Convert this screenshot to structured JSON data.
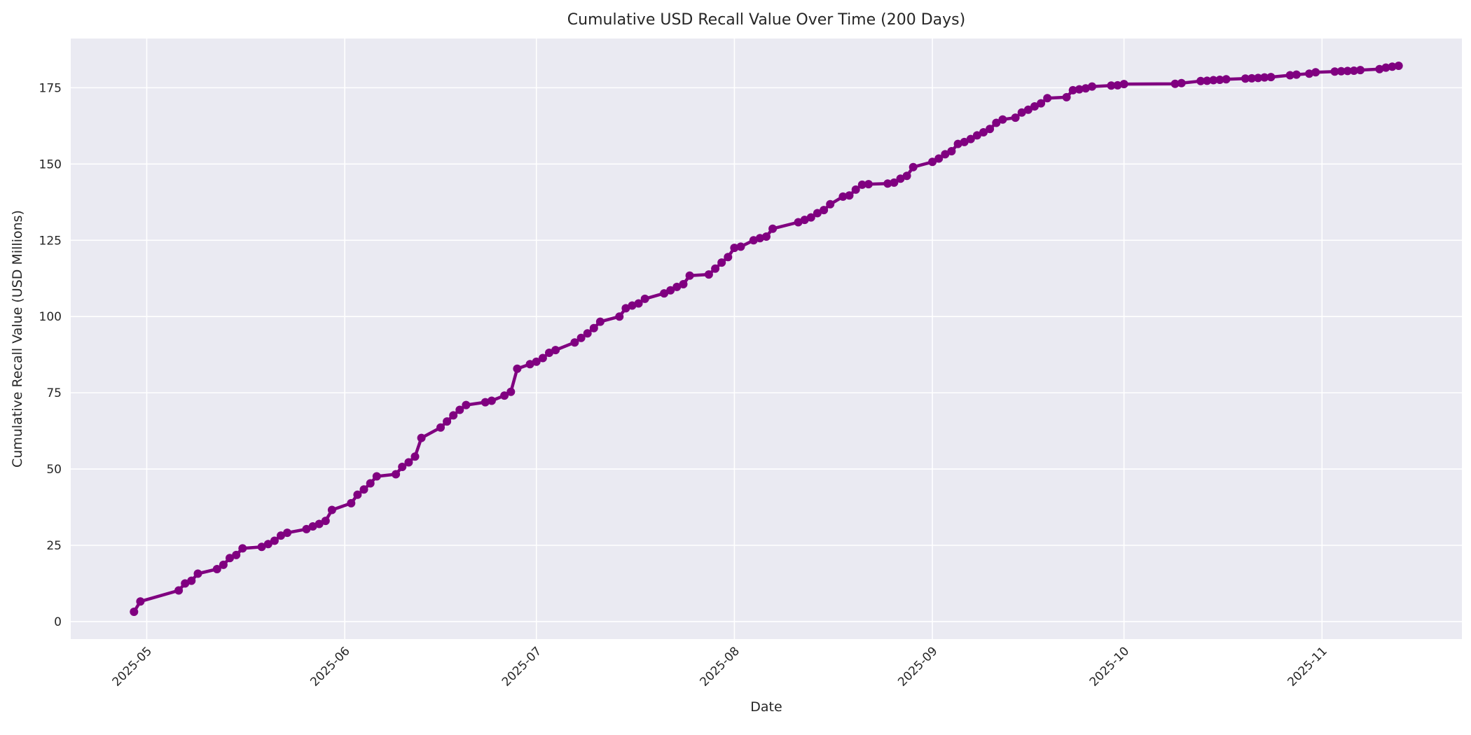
{
  "chart_data": {
    "type": "line",
    "title": "Cumulative USD Recall Value Over Time (200 Days)",
    "xlabel": "Date",
    "ylabel": "Cumulative Recall Value (USD Millions)",
    "legend": false,
    "grid": true,
    "background": "#eaeaf2",
    "grid_color": "#ffffff",
    "text_color": "#262626",
    "line_color": "#800080",
    "marker": "circle",
    "ylim": [
      -5.8,
      191.2
    ],
    "y_ticks": [
      0,
      25,
      50,
      75,
      100,
      125,
      150,
      175
    ],
    "x_ticks": [
      "2025-05",
      "2025-06",
      "2025-07",
      "2025-08",
      "2025-09",
      "2025-10",
      "2025-11"
    ],
    "dates": [
      "2025-04-29",
      "2025-04-30",
      "2025-05-06",
      "2025-05-07",
      "2025-05-08",
      "2025-05-09",
      "2025-05-12",
      "2025-05-13",
      "2025-05-14",
      "2025-05-15",
      "2025-05-16",
      "2025-05-19",
      "2025-05-20",
      "2025-05-21",
      "2025-05-22",
      "2025-05-23",
      "2025-05-26",
      "2025-05-27",
      "2025-05-28",
      "2025-05-29",
      "2025-05-30",
      "2025-06-02",
      "2025-06-03",
      "2025-06-04",
      "2025-06-05",
      "2025-06-06",
      "2025-06-09",
      "2025-06-10",
      "2025-06-11",
      "2025-06-12",
      "2025-06-13",
      "2025-06-16",
      "2025-06-17",
      "2025-06-18",
      "2025-06-19",
      "2025-06-20",
      "2025-06-23",
      "2025-06-24",
      "2025-06-26",
      "2025-06-27",
      "2025-06-28",
      "2025-06-30",
      "2025-07-01",
      "2025-07-02",
      "2025-07-03",
      "2025-07-04",
      "2025-07-07",
      "2025-07-08",
      "2025-07-09",
      "2025-07-10",
      "2025-07-11",
      "2025-07-14",
      "2025-07-15",
      "2025-07-16",
      "2025-07-17",
      "2025-07-18",
      "2025-07-21",
      "2025-07-22",
      "2025-07-23",
      "2025-07-24",
      "2025-07-25",
      "2025-07-28",
      "2025-07-29",
      "2025-07-30",
      "2025-07-31",
      "2025-08-01",
      "2025-08-02",
      "2025-08-04",
      "2025-08-05",
      "2025-08-06",
      "2025-08-07",
      "2025-08-11",
      "2025-08-12",
      "2025-08-13",
      "2025-08-14",
      "2025-08-15",
      "2025-08-16",
      "2025-08-18",
      "2025-08-19",
      "2025-08-20",
      "2025-08-21",
      "2025-08-22",
      "2025-08-25",
      "2025-08-26",
      "2025-08-27",
      "2025-08-28",
      "2025-08-29",
      "2025-09-01",
      "2025-09-02",
      "2025-09-03",
      "2025-09-04",
      "2025-09-05",
      "2025-09-06",
      "2025-09-07",
      "2025-09-08",
      "2025-09-09",
      "2025-09-10",
      "2025-09-11",
      "2025-09-12",
      "2025-09-14",
      "2025-09-15",
      "2025-09-16",
      "2025-09-17",
      "2025-09-18",
      "2025-09-19",
      "2025-09-22",
      "2025-09-23",
      "2025-09-24",
      "2025-09-25",
      "2025-09-26",
      "2025-09-29",
      "2025-09-30",
      "2025-10-01",
      "2025-10-09",
      "2025-10-10",
      "2025-10-13",
      "2025-10-14",
      "2025-10-15",
      "2025-10-16",
      "2025-10-17",
      "2025-10-20",
      "2025-10-21",
      "2025-10-22",
      "2025-10-23",
      "2025-10-24",
      "2025-10-27",
      "2025-10-28",
      "2025-10-30",
      "2025-10-31",
      "2025-11-03",
      "2025-11-04",
      "2025-11-05",
      "2025-11-06",
      "2025-11-07",
      "2025-11-10",
      "2025-11-11",
      "2025-11-12",
      "2025-11-13"
    ],
    "values": [
      3.2,
      6.6,
      10.2,
      12.5,
      13.4,
      15.7,
      17.2,
      18.6,
      20.8,
      21.8,
      24.0,
      24.5,
      25.4,
      26.5,
      28.2,
      29.1,
      30.3,
      31.2,
      32.0,
      33.0,
      36.6,
      38.8,
      41.6,
      43.3,
      45.3,
      47.6,
      48.3,
      50.7,
      52.2,
      54.1,
      60.2,
      63.6,
      65.6,
      67.6,
      69.4,
      71.0,
      71.9,
      72.4,
      74.1,
      75.3,
      82.9,
      84.4,
      85.2,
      86.4,
      88.1,
      89.0,
      91.5,
      93.0,
      94.5,
      96.2,
      98.3,
      100.0,
      102.7,
      103.6,
      104.3,
      105.8,
      107.6,
      108.6,
      109.7,
      110.6,
      113.4,
      113.8,
      115.7,
      117.7,
      119.5,
      122.5,
      122.9,
      125.0,
      125.7,
      126.2,
      128.8,
      130.9,
      131.7,
      132.5,
      133.9,
      134.9,
      136.8,
      139.3,
      139.7,
      141.6,
      143.2,
      143.4,
      143.6,
      143.9,
      145.2,
      146.1,
      149.0,
      150.7,
      151.8,
      153.2,
      154.2,
      156.6,
      157.2,
      158.2,
      159.4,
      160.4,
      161.5,
      163.5,
      164.6,
      165.2,
      166.9,
      167.8,
      168.9,
      169.9,
      171.6,
      171.9,
      174.2,
      174.5,
      174.8,
      175.4,
      175.7,
      175.8,
      176.2,
      176.3,
      176.5,
      177.2,
      177.3,
      177.5,
      177.6,
      177.8,
      178.0,
      178.1,
      178.2,
      178.4,
      178.5,
      179.1,
      179.3,
      179.6,
      180.1,
      180.3,
      180.4,
      180.5,
      180.6,
      180.8,
      181.1,
      181.6,
      181.9,
      182.2
    ]
  }
}
